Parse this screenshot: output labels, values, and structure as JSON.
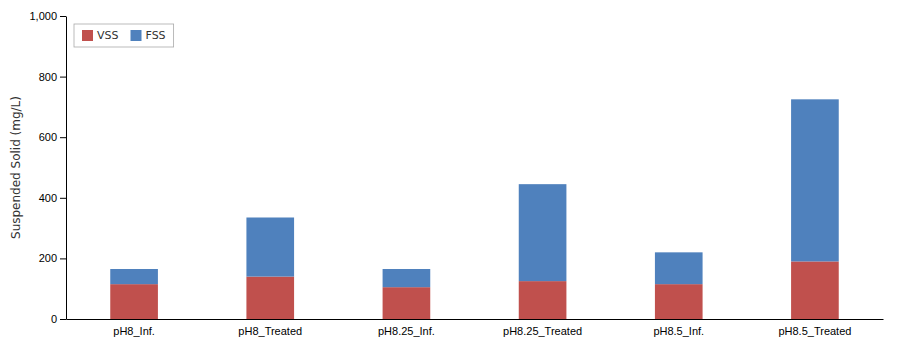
{
  "chart_data": {
    "type": "bar",
    "stacked": true,
    "categories": [
      "pH8_Inf.",
      "pH8_Treated",
      "pH8.25_Inf.",
      "pH8.25_Treated",
      "pH8.5_Inf.",
      "pH8.5_Treated"
    ],
    "series": [
      {
        "name": "VSS",
        "color": "#c0504d",
        "values": [
          115,
          140,
          105,
          125,
          115,
          190
        ]
      },
      {
        "name": "FSS",
        "color": "#4f81bd",
        "values": [
          50,
          195,
          60,
          320,
          105,
          535
        ]
      }
    ],
    "ylabel": "Suspended Solid (mg/L)",
    "ylim": [
      0,
      1000
    ],
    "yticks": [
      0,
      200,
      400,
      600,
      800,
      {
        "value": 1000,
        "label": "1,000"
      }
    ],
    "legend": "upper left",
    "grid": false
  }
}
